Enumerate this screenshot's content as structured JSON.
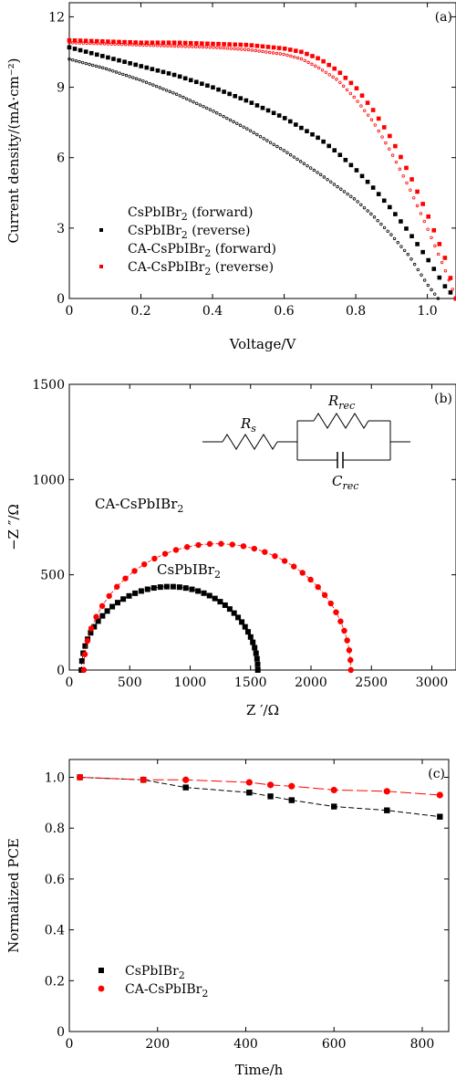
{
  "chart_data": [
    {
      "type": "line",
      "panel_label": "(a)",
      "xlabel": "Voltage/V",
      "ylabel": "Current density/(mA·cm⁻²)",
      "xlim": [
        0,
        1.08
      ],
      "ylim": [
        0,
        12.6
      ],
      "xticks": [
        0,
        0.2,
        0.4,
        0.6,
        0.8,
        1.0
      ],
      "xtick_labels": [
        "0",
        "0.2",
        "0.4",
        "0.6",
        "0.8",
        "1.0"
      ],
      "yticks": [
        0,
        3,
        6,
        9,
        12
      ],
      "ytick_labels": [
        "0",
        "3",
        "6",
        "9",
        "12"
      ],
      "legend_position": "bottom-left",
      "series": [
        {
          "name": "CsPbIBr₂ (forward)",
          "color": "#000000",
          "style": "open-dotted",
          "x": [
            0,
            0.1,
            0.2,
            0.3,
            0.4,
            0.5,
            0.6,
            0.7,
            0.8,
            0.85,
            0.9,
            0.95,
            1.0,
            1.03
          ],
          "y": [
            10.2,
            9.8,
            9.3,
            8.7,
            8.0,
            7.2,
            6.3,
            5.3,
            4.2,
            3.5,
            2.7,
            1.8,
            0.6,
            0
          ]
        },
        {
          "name": "CsPbIBr₂ (reverse)",
          "color": "#000000",
          "style": "filled",
          "x": [
            0,
            0.1,
            0.2,
            0.3,
            0.4,
            0.5,
            0.6,
            0.7,
            0.75,
            0.8,
            0.85,
            0.9,
            0.95,
            1.0,
            1.05,
            1.08
          ],
          "y": [
            10.7,
            10.3,
            9.9,
            9.5,
            9.0,
            8.4,
            7.7,
            6.8,
            6.2,
            5.5,
            4.7,
            3.8,
            2.8,
            1.7,
            0.5,
            0
          ]
        },
        {
          "name": "CA-CsPbIBr₂ (forward)",
          "color": "#ff0000",
          "style": "open-dotted",
          "x": [
            0,
            0.1,
            0.2,
            0.3,
            0.4,
            0.5,
            0.6,
            0.65,
            0.7,
            0.75,
            0.8,
            0.85,
            0.9,
            0.95,
            1.0,
            1.05,
            1.08
          ],
          "y": [
            10.9,
            10.85,
            10.8,
            10.75,
            10.7,
            10.6,
            10.4,
            10.2,
            9.8,
            9.3,
            8.5,
            7.5,
            6.2,
            4.7,
            3.0,
            1.2,
            0
          ]
        },
        {
          "name": "CA-CsPbIBr₂ (reverse)",
          "color": "#ff0000",
          "style": "filled",
          "x": [
            0,
            0.1,
            0.2,
            0.3,
            0.4,
            0.5,
            0.6,
            0.65,
            0.7,
            0.75,
            0.8,
            0.85,
            0.9,
            0.95,
            1.0,
            1.05,
            1.08
          ],
          "y": [
            11.0,
            10.95,
            10.9,
            10.9,
            10.85,
            10.8,
            10.65,
            10.5,
            10.2,
            9.7,
            9.0,
            8.0,
            6.8,
            5.3,
            3.6,
            1.7,
            0
          ]
        }
      ]
    },
    {
      "type": "scatter",
      "panel_label": "(b)",
      "xlabel": "Z ′/Ω",
      "ylabel": "−Z ″/Ω",
      "xlim": [
        0,
        3200
      ],
      "ylim": [
        0,
        1500
      ],
      "xticks": [
        0,
        500,
        1000,
        1500,
        2000,
        2500,
        3000
      ],
      "xtick_labels": [
        "0",
        "500",
        "1000",
        "1500",
        "2000",
        "2500",
        "3000"
      ],
      "yticks": [
        0,
        500,
        1000,
        1500
      ],
      "ytick_labels": [
        "0",
        "500",
        "1000",
        "1500"
      ],
      "annotations": [
        "CA-CsPbIBr₂",
        "CsPbIBr₂"
      ],
      "circuit_labels": {
        "rs": "R",
        "rs_sub": "s",
        "rrec": "R",
        "rrec_sub": "rec",
        "crec": "C",
        "crec_sub": "rec"
      },
      "series": [
        {
          "name": "CsPbIBr₂",
          "color": "#000000",
          "marker": "square",
          "semicircle": {
            "x_start": 100,
            "x_end": 1560,
            "n_points": 42
          }
        },
        {
          "name": "CA-CsPbIBr₂",
          "color": "#ff0000",
          "marker": "circle",
          "semicircle": {
            "x_start": 120,
            "x_end": 2330,
            "n_points": 36
          }
        }
      ]
    },
    {
      "type": "line",
      "panel_label": "(c)",
      "xlabel": "Time/h",
      "ylabel": "Normalized PCE",
      "xlim": [
        0,
        860
      ],
      "ylim": [
        0,
        1.07
      ],
      "xticks": [
        0,
        200,
        400,
        600,
        800
      ],
      "xtick_labels": [
        "0",
        "200",
        "400",
        "600",
        "800"
      ],
      "yticks": [
        0,
        0.2,
        0.4,
        0.6,
        0.8,
        1.0
      ],
      "ytick_labels": [
        "0",
        "0.2",
        "0.4",
        "0.6",
        "0.8",
        "1.0"
      ],
      "legend_position": "bottom-left",
      "series": [
        {
          "name": "CsPbIBr₂",
          "color": "#000000",
          "marker": "square",
          "x": [
            24,
            168,
            264,
            408,
            456,
            504,
            600,
            720,
            840
          ],
          "y": [
            1.0,
            0.99,
            0.96,
            0.94,
            0.925,
            0.91,
            0.885,
            0.87,
            0.845
          ]
        },
        {
          "name": "CA-CsPbIBr₂",
          "color": "#ff0000",
          "marker": "circle",
          "x": [
            24,
            168,
            264,
            408,
            456,
            504,
            600,
            720,
            840
          ],
          "y": [
            1.0,
            0.99,
            0.99,
            0.98,
            0.97,
            0.965,
            0.95,
            0.945,
            0.93
          ]
        }
      ]
    }
  ]
}
